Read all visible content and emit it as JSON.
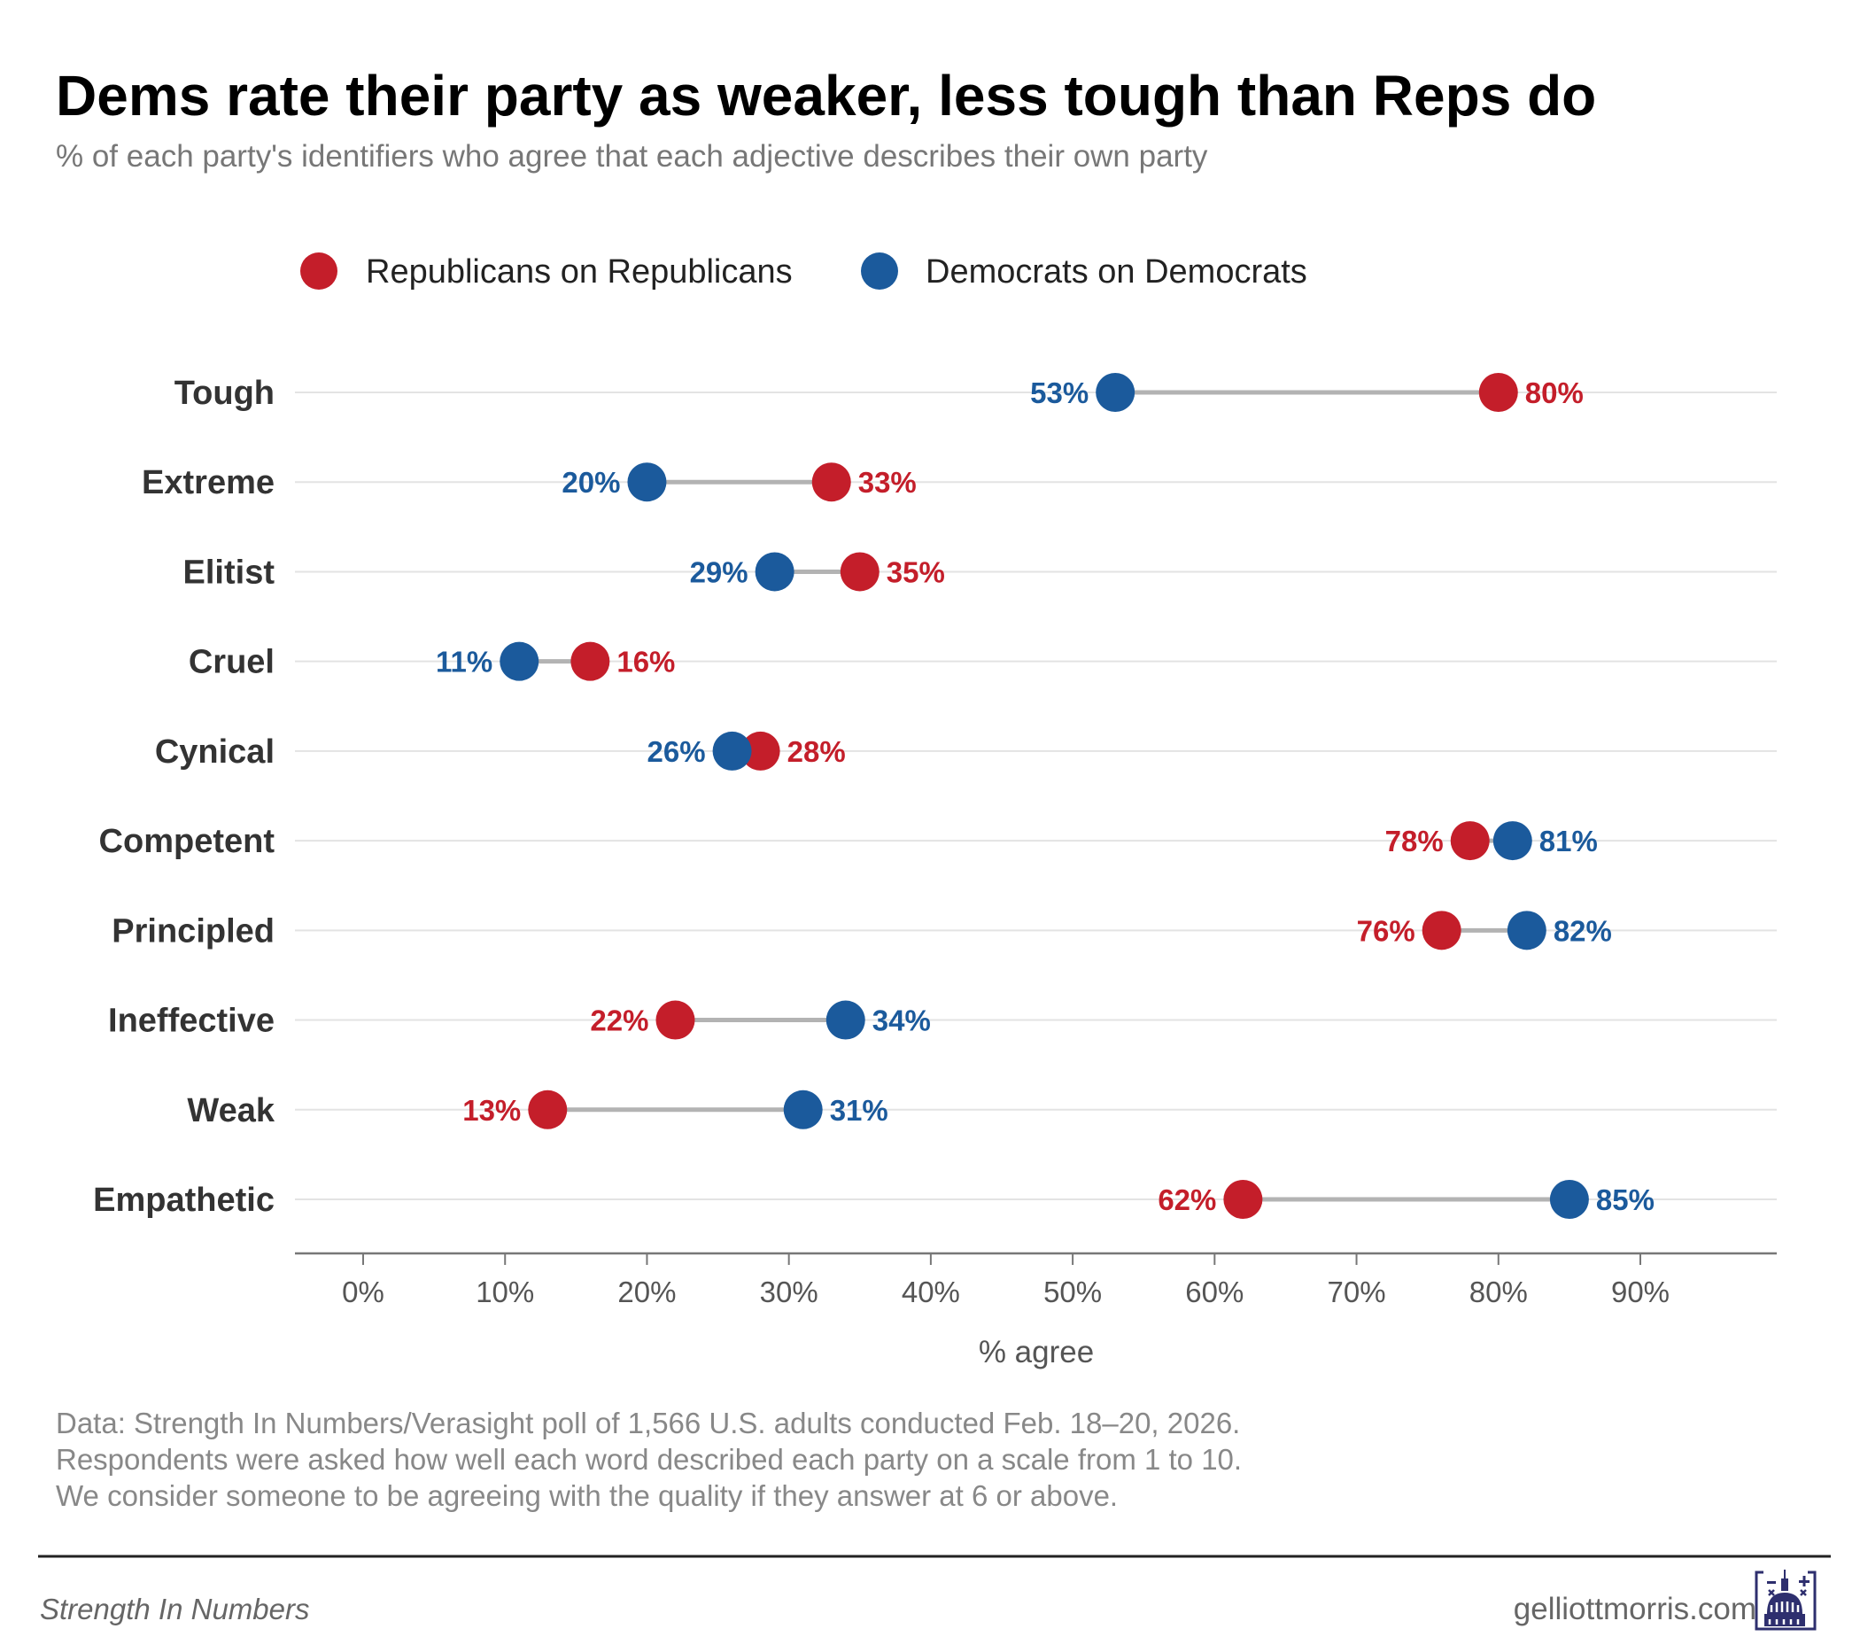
{
  "title": "Dems rate their party as weaker, less tough than Reps do",
  "subtitle": "% of each party's identifiers who agree that each adjective describes their own party",
  "colors": {
    "rep": "#c41e2a",
    "dem": "#1b5a9c",
    "connector": "#b3b3b3",
    "grid": "#e3e3e3",
    "logo": "#2e2f6e"
  },
  "chart_data": {
    "type": "dumbbell",
    "title": "Dems rate their party as weaker, less tough than Reps do",
    "xlabel": "% agree",
    "ylabel": "",
    "xlim": [
      -5,
      99
    ],
    "x_ticks": [
      0,
      10,
      20,
      30,
      40,
      50,
      60,
      70,
      80,
      90
    ],
    "x_tick_labels": [
      "0%",
      "10%",
      "20%",
      "30%",
      "40%",
      "50%",
      "60%",
      "70%",
      "80%",
      "90%"
    ],
    "legend_position": "top",
    "legend": [
      "Republicans on Republicans",
      "Democrats on Democrats"
    ],
    "categories": [
      "Tough",
      "Extreme",
      "Elitist",
      "Cruel",
      "Cynical",
      "Competent",
      "Principled",
      "Ineffective",
      "Weak",
      "Empathetic"
    ],
    "series": [
      {
        "name": "Republicans on Republicans",
        "values": [
          80,
          33,
          35,
          16,
          28,
          78,
          76,
          22,
          13,
          62
        ]
      },
      {
        "name": "Democrats on Democrats",
        "values": [
          53,
          20,
          29,
          11,
          26,
          81,
          82,
          34,
          31,
          85
        ]
      }
    ],
    "grid": true
  },
  "notes": [
    "Data: Strength In Numbers/Verasight poll of 1,566 U.S. adults conducted Feb. 18–20, 2026.",
    "Respondents were asked how well each word described each party on a scale from 1 to 10.",
    "We consider someone to be agreeing with the quality if they answer at 6 or above."
  ],
  "footer": {
    "left": "Strength In Numbers",
    "right": "gelliottmorris.com"
  }
}
